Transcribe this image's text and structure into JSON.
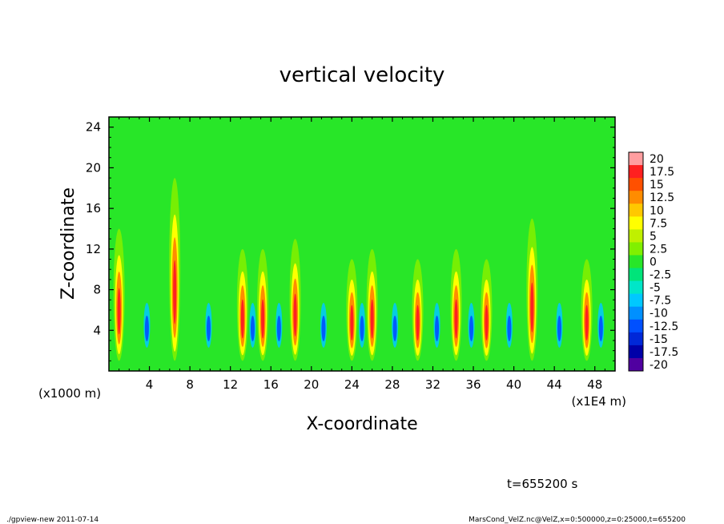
{
  "chart_data": {
    "type": "heatmap",
    "title": "vertical velocity",
    "xlabel": "X-coordinate",
    "ylabel": "Z-coordinate",
    "x_unit_left": "(x1000 m)",
    "x_unit_right": "(x1E4 m)",
    "xlim": [
      0,
      50
    ],
    "ylim": [
      0,
      25
    ],
    "x_ticks": [
      4,
      8,
      12,
      16,
      20,
      24,
      28,
      32,
      36,
      40,
      44,
      48
    ],
    "y_ticks": [
      4,
      8,
      12,
      16,
      20,
      24
    ],
    "colorbar": {
      "labels": [
        "20",
        "17.5",
        "15",
        "12.5",
        "10",
        "7.5",
        "5",
        "2.5",
        "0",
        "-2.5",
        "-5",
        "-7.5",
        "-10",
        "-12.5",
        "-15",
        "-17.5",
        "-20"
      ],
      "colors": [
        "#ff9ea0",
        "#ff2020",
        "#ff5000",
        "#ff8c00",
        "#ffc800",
        "#ffff00",
        "#c0f000",
        "#80f000",
        "#28e628",
        "#00e47a",
        "#00e6c8",
        "#00c8ff",
        "#0090ff",
        "#0050ff",
        "#0028d8",
        "#0000a8",
        "#5000a0"
      ]
    },
    "features": [
      {
        "x": 1.0,
        "peak": 13,
        "h": 10
      },
      {
        "x": 6.5,
        "peak": 18,
        "h": 13
      },
      {
        "x": 13.2,
        "peak": 11,
        "h": 8
      },
      {
        "x": 15.2,
        "peak": 11,
        "h": 8
      },
      {
        "x": 18.4,
        "peak": 12,
        "h": 9
      },
      {
        "x": 24.0,
        "peak": 10,
        "h": 8
      },
      {
        "x": 26.0,
        "peak": 11,
        "h": 8
      },
      {
        "x": 30.5,
        "peak": 10,
        "h": 8
      },
      {
        "x": 34.3,
        "peak": 11,
        "h": 8
      },
      {
        "x": 37.3,
        "peak": 10,
        "h": 8
      },
      {
        "x": 41.8,
        "peak": 14,
        "h": 11
      },
      {
        "x": 47.2,
        "peak": 10,
        "h": 8
      }
    ],
    "annotation": "t=655200 s"
  },
  "footer": {
    "left": "./gpview-new   2011-07-14",
    "right": "MarsCond_VelZ.nc@VelZ,x=0:500000,z=0:25000,t=655200"
  }
}
